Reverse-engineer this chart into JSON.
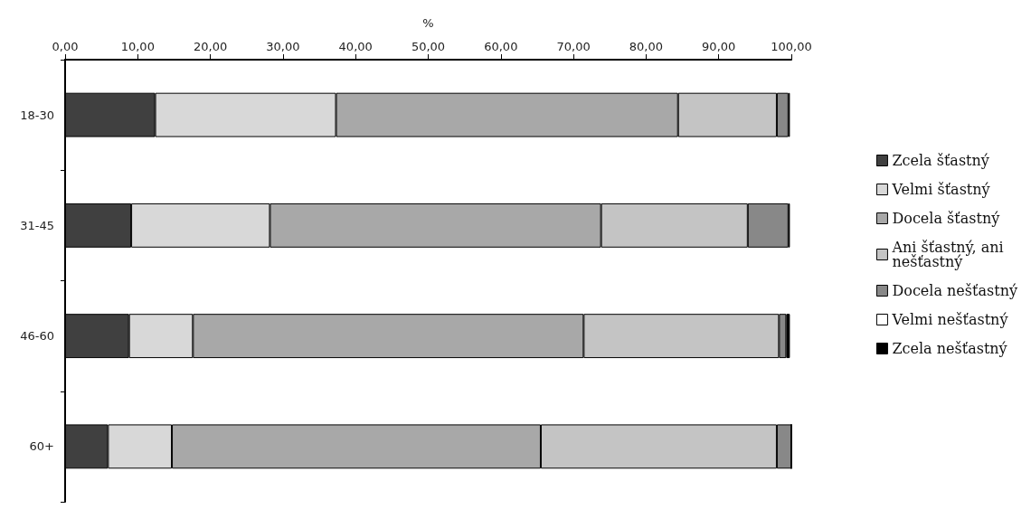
{
  "chart_data": {
    "type": "bar",
    "orientation": "horizontal",
    "stacked": true,
    "xlabel": "%",
    "categories": [
      "18-30",
      "31-45",
      "46-60",
      "60+"
    ],
    "xlim": [
      0,
      100
    ],
    "xticks": [
      {
        "value": 0,
        "label": "0,00"
      },
      {
        "value": 10,
        "label": "10,00"
      },
      {
        "value": 20,
        "label": "20,00"
      },
      {
        "value": 30,
        "label": "30,00"
      },
      {
        "value": 40,
        "label": "40,00"
      },
      {
        "value": 50,
        "label": "50,00"
      },
      {
        "value": 60,
        "label": "60,00"
      },
      {
        "value": 70,
        "label": "70,00"
      },
      {
        "value": 80,
        "label": "80,00"
      },
      {
        "value": 90,
        "label": "90,00"
      },
      {
        "value": 100,
        "label": "100,00"
      }
    ],
    "series": [
      {
        "name": "Zcela šťastný",
        "color": "#404040",
        "values": [
          12.4,
          9.1,
          8.8,
          5.9
        ]
      },
      {
        "name": "Velmi šťastný",
        "color": "#d8d8d8",
        "values": [
          24.9,
          19.1,
          8.8,
          8.8
        ]
      },
      {
        "name": "Docela šťastný",
        "color": "#a8a8a8",
        "values": [
          47.1,
          45.6,
          53.8,
          50.8
        ]
      },
      {
        "name": "Ani šťastný, ani nešťastný",
        "color": "#c4c4c4",
        "values": [
          13.6,
          20.2,
          26.9,
          32.5
        ]
      },
      {
        "name": "Docela nešťastný",
        "color": "#888888",
        "values": [
          1.6,
          5.6,
          1.0,
          2.0
        ]
      },
      {
        "name": "Velmi nešťastný",
        "color": "#ffffff",
        "values": [
          null,
          null,
          null,
          0
        ]
      },
      {
        "name": "Zcela nešťastný",
        "color": "#000000",
        "values": [
          0.2,
          0.2,
          0.5,
          0
        ]
      }
    ],
    "legend": "right",
    "grid": false
  }
}
